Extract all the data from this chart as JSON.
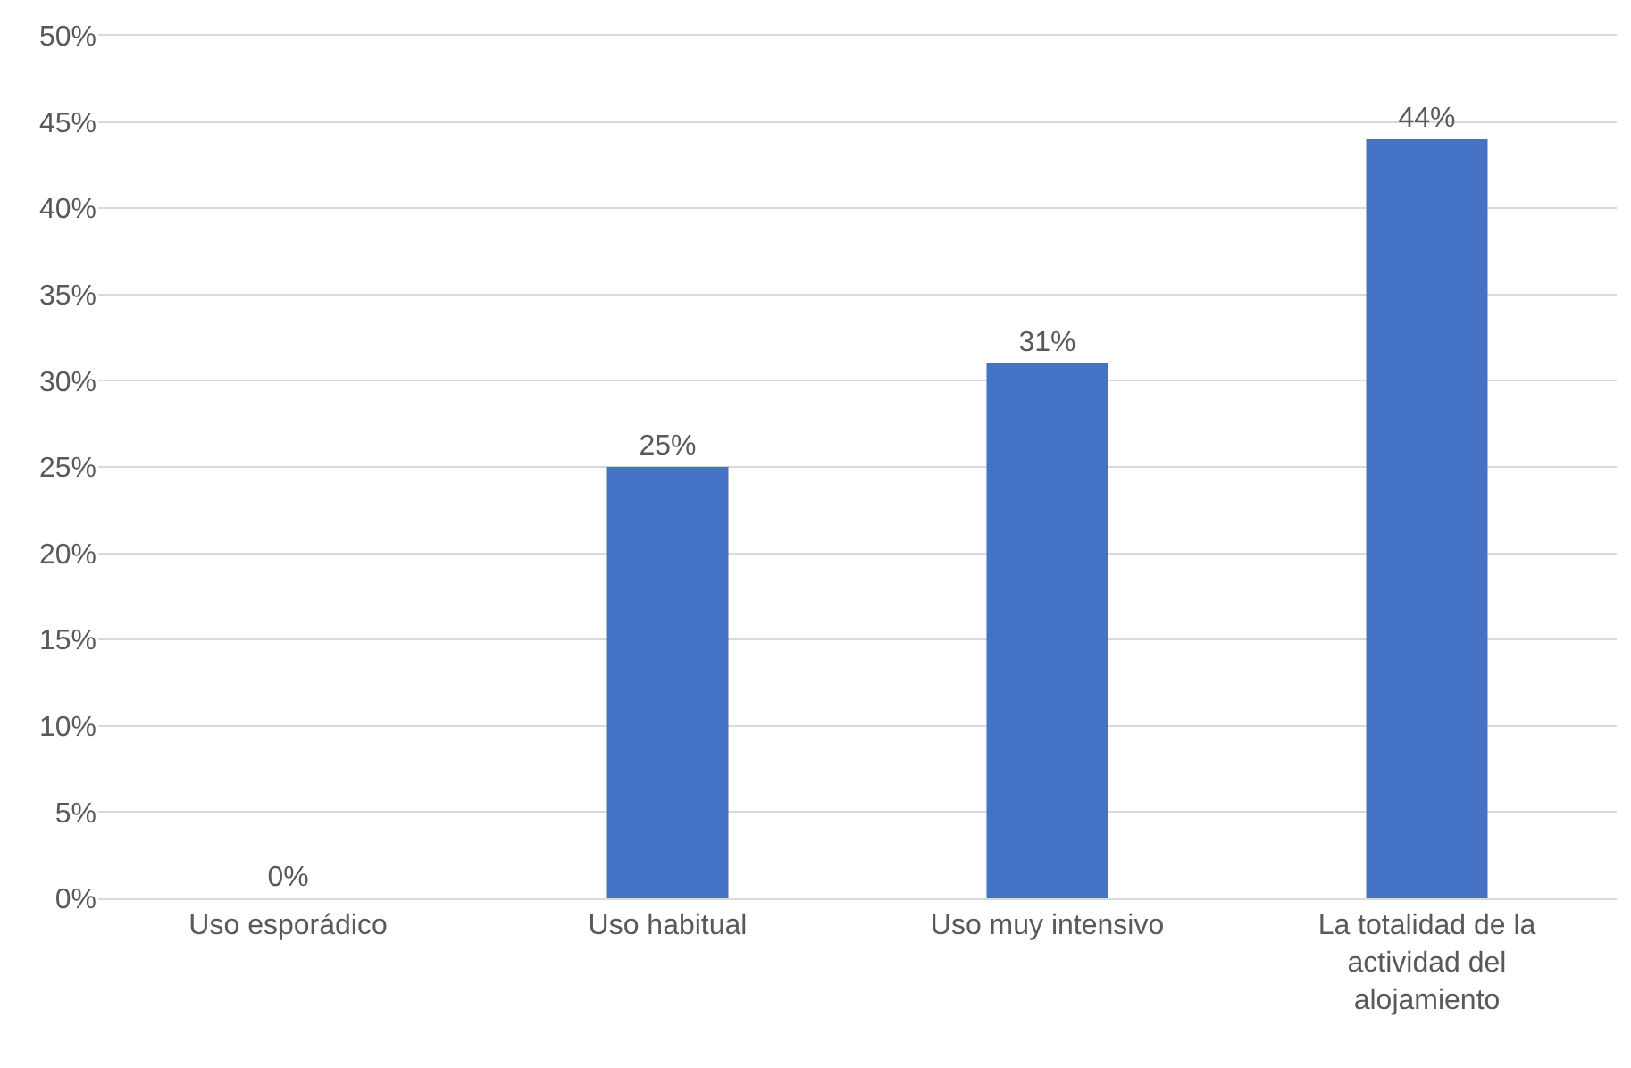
{
  "chart_data": {
    "type": "bar",
    "categories": [
      "Uso esporádico",
      "Uso habitual",
      "Uso muy intensivo",
      "La totalidad de la actividad del alojamiento"
    ],
    "values": [
      0,
      25,
      31,
      44
    ],
    "value_labels": [
      "0%",
      "25%",
      "31%",
      "44%"
    ],
    "color": "#4472c4",
    "ylim": [
      0,
      50
    ],
    "yticks": [
      {
        "value": 0,
        "label": "0%"
      },
      {
        "value": 5,
        "label": "5%"
      },
      {
        "value": 10,
        "label": "10%"
      },
      {
        "value": 15,
        "label": "15%"
      },
      {
        "value": 20,
        "label": "20%"
      },
      {
        "value": 25,
        "label": "25%"
      },
      {
        "value": 30,
        "label": "30%"
      },
      {
        "value": 35,
        "label": "35%"
      },
      {
        "value": 40,
        "label": "40%"
      },
      {
        "value": 45,
        "label": "45%"
      },
      {
        "value": 50,
        "label": "50%"
      }
    ],
    "grid": "y"
  }
}
